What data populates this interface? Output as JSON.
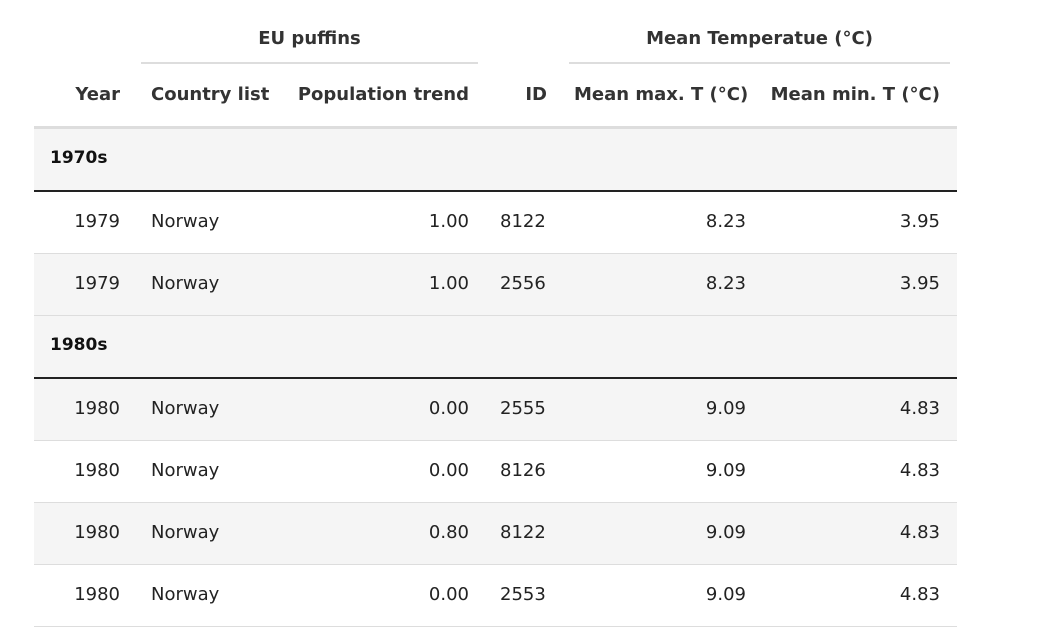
{
  "table": {
    "spanners": [
      {
        "label": "EU puffins"
      },
      {
        "label": "Mean Temperatue (°C)"
      }
    ],
    "columns": {
      "year": "Year",
      "country": "Country list",
      "trend": "Population trend",
      "id": "ID",
      "max": "Mean max. T (°C)",
      "min": "Mean min. T (°C)"
    },
    "groups": [
      {
        "name": "1970s",
        "rows": [
          {
            "year": "1979",
            "country": "Norway",
            "trend": "1.00",
            "id": "8122",
            "max": "8.23",
            "min": "3.95"
          },
          {
            "year": "1979",
            "country": "Norway",
            "trend": "1.00",
            "id": "2556",
            "max": "8.23",
            "min": "3.95"
          }
        ]
      },
      {
        "name": "1980s",
        "rows": [
          {
            "year": "1980",
            "country": "Norway",
            "trend": "0.00",
            "id": "2555",
            "max": "9.09",
            "min": "4.83"
          },
          {
            "year": "1980",
            "country": "Norway",
            "trend": "0.00",
            "id": "8126",
            "max": "9.09",
            "min": "4.83"
          },
          {
            "year": "1980",
            "country": "Norway",
            "trend": "0.80",
            "id": "8122",
            "max": "9.09",
            "min": "4.83"
          },
          {
            "year": "1980",
            "country": "Norway",
            "trend": "0.00",
            "id": "2553",
            "max": "9.09",
            "min": "4.83"
          }
        ]
      }
    ]
  }
}
